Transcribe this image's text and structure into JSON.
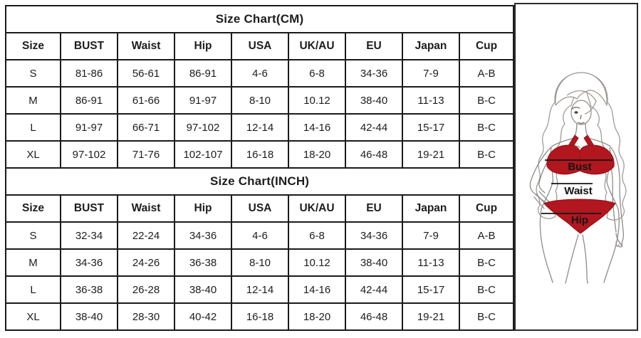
{
  "page": {
    "background": "#ffffff",
    "text_color": "#1d1d1d",
    "grid_color": "#1a1a1a"
  },
  "chart_data": [
    {
      "type": "table",
      "title": "Size Chart(CM)",
      "columns": [
        "Size",
        "BUST",
        "Waist",
        "Hip",
        "USA",
        "UK/AU",
        "EU",
        "Japan",
        "Cup"
      ],
      "rows": [
        [
          "S",
          "81-86",
          "56-61",
          "86-91",
          "4-6",
          "6-8",
          "34-36",
          "7-9",
          "A-B"
        ],
        [
          "M",
          "86-91",
          "61-66",
          "91-97",
          "8-10",
          "10.12",
          "38-40",
          "11-13",
          "B-C"
        ],
        [
          "L",
          "91-97",
          "66-71",
          "97-102",
          "12-14",
          "14-16",
          "42-44",
          "15-17",
          "B-C"
        ],
        [
          "XL",
          "97-102",
          "71-76",
          "102-107",
          "16-18",
          "18-20",
          "46-48",
          "19-21",
          "B-C"
        ]
      ]
    },
    {
      "type": "table",
      "title": "Size Chart(INCH)",
      "columns": [
        "Size",
        "BUST",
        "Waist",
        "Hip",
        "USA",
        "UK/AU",
        "EU",
        "Japan",
        "Cup"
      ],
      "rows": [
        [
          "S",
          "32-34",
          "22-24",
          "34-36",
          "4-6",
          "6-8",
          "34-36",
          "7-9",
          "A-B"
        ],
        [
          "M",
          "34-36",
          "24-26",
          "36-38",
          "8-10",
          "10.12",
          "38-40",
          "11-13",
          "B-C"
        ],
        [
          "L",
          "36-38",
          "26-28",
          "38-40",
          "12-14",
          "14-16",
          "42-44",
          "15-17",
          "B-C"
        ],
        [
          "XL",
          "38-40",
          "28-30",
          "40-42",
          "16-18",
          "18-20",
          "46-48",
          "19-21",
          "B-C"
        ]
      ]
    }
  ],
  "figure": {
    "illustration": "woman-in-red-bikini-measurement-figure",
    "bikini_color": "#b2161f",
    "line_color": "#151515",
    "labels": {
      "bust": "Bust",
      "waist": "Waist",
      "hip": "Hip"
    }
  }
}
